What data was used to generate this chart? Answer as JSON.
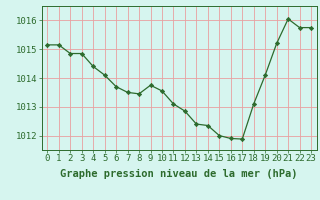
{
  "x": [
    0,
    1,
    2,
    3,
    4,
    5,
    6,
    7,
    8,
    9,
    10,
    11,
    12,
    13,
    14,
    15,
    16,
    17,
    18,
    19,
    20,
    21,
    22,
    23
  ],
  "y": [
    1015.15,
    1015.15,
    1014.85,
    1014.85,
    1014.4,
    1014.1,
    1013.7,
    1013.5,
    1013.45,
    1013.75,
    1013.55,
    1013.1,
    1012.85,
    1012.4,
    1012.35,
    1012.0,
    1011.9,
    1011.88,
    1013.1,
    1014.1,
    1015.2,
    1016.05,
    1015.75,
    1015.75
  ],
  "line_color": "#2d6b2d",
  "marker": "D",
  "marker_size": 2.2,
  "background_color": "#d6f5ef",
  "grid_color": "#e8a0a0",
  "ylabel_ticks": [
    1012,
    1013,
    1014,
    1015,
    1016
  ],
  "xlabel": "Graphe pression niveau de la mer (hPa)",
  "xlabel_fontsize": 7.5,
  "tick_fontsize": 6.5,
  "ylim": [
    1011.5,
    1016.5
  ],
  "xlim": [
    -0.5,
    23.5
  ]
}
